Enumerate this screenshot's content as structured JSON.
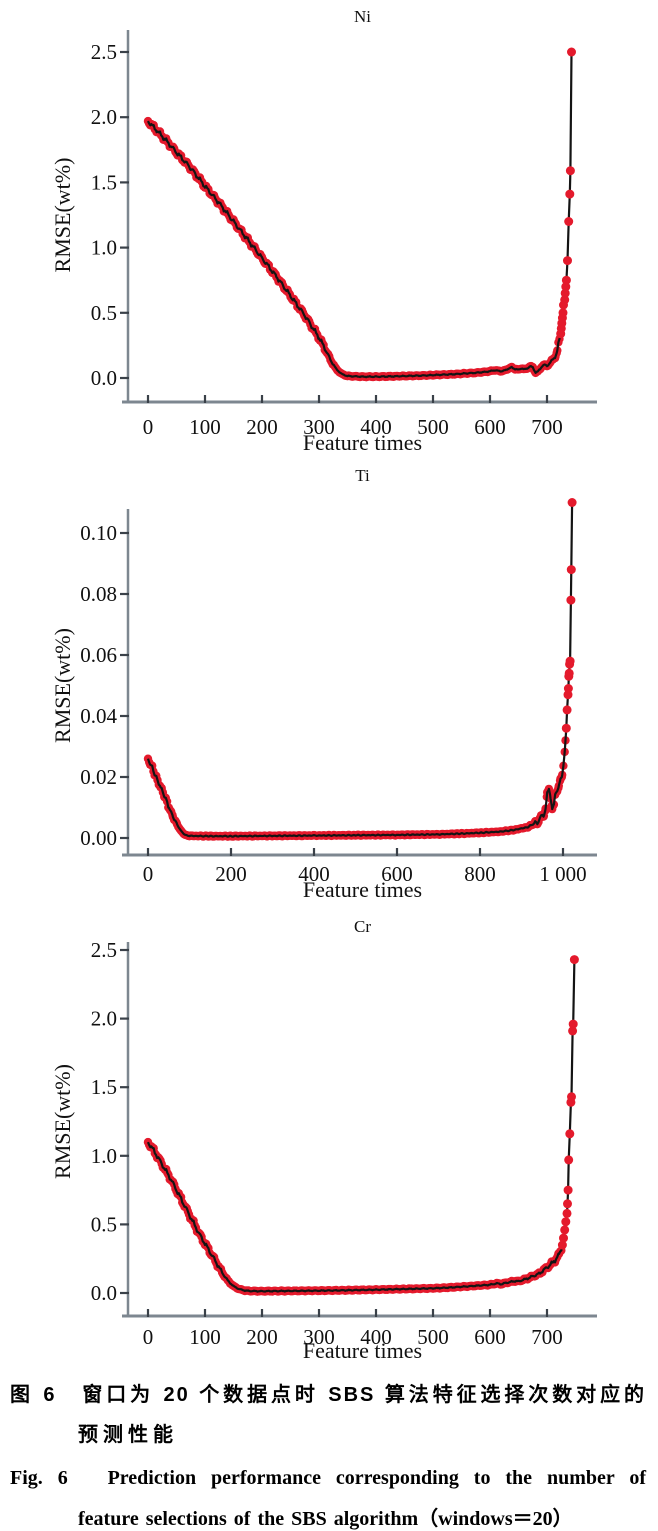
{
  "caption": {
    "zh_line1": "图 6　窗口为 20 个数据点时 SBS 算法特征选择次数对应的",
    "zh_line2": "预测性能",
    "en_line1": "Fig. 6　Prediction performance corresponding to the number of",
    "en_line2": "feature selections of the SBS algorithm（windows＝20）"
  },
  "colors": {
    "marker": "#e41a2c",
    "line": "#141414",
    "axis": "#7d8790",
    "tick": "#3a4149",
    "text": "#111111"
  },
  "chart_data": [
    {
      "type": "scatter-line",
      "title": "Ni",
      "xlabel": "Feature times",
      "ylabel": "RMSE(wt%)",
      "xlim": [
        0,
        790
      ],
      "ylim": [
        0,
        2.5
      ],
      "grid": false,
      "legend": "none",
      "xticks": {
        "values": [
          0,
          100,
          200,
          300,
          400,
          500,
          600,
          700
        ],
        "labels": [
          "0",
          "100",
          "200",
          "300",
          "400",
          "500",
          "600",
          "700"
        ]
      },
      "yticks": {
        "values": [
          0,
          0.5,
          1.0,
          1.5,
          2.0,
          2.5
        ],
        "labels": [
          "0.0",
          "0.5",
          "1.0",
          "1.5",
          "2.0",
          "2.5"
        ]
      },
      "curve": [
        [
          0,
          1.97
        ],
        [
          15,
          1.9
        ],
        [
          30,
          1.83
        ],
        [
          50,
          1.73
        ],
        [
          75,
          1.61
        ],
        [
          100,
          1.47
        ],
        [
          125,
          1.34
        ],
        [
          150,
          1.2
        ],
        [
          175,
          1.06
        ],
        [
          200,
          0.92
        ],
        [
          225,
          0.78
        ],
        [
          250,
          0.63
        ],
        [
          275,
          0.48
        ],
        [
          300,
          0.31
        ],
        [
          310,
          0.23
        ],
        [
          320,
          0.14
        ],
        [
          330,
          0.07
        ],
        [
          340,
          0.03
        ],
        [
          350,
          0.015
        ],
        [
          375,
          0.01
        ],
        [
          400,
          0.01
        ],
        [
          425,
          0.012
        ],
        [
          450,
          0.015
        ],
        [
          475,
          0.018
        ],
        [
          500,
          0.022
        ],
        [
          520,
          0.026
        ],
        [
          540,
          0.03
        ],
        [
          560,
          0.036
        ],
        [
          575,
          0.04
        ],
        [
          590,
          0.046
        ],
        [
          600,
          0.052
        ],
        [
          608,
          0.06
        ],
        [
          614,
          0.055
        ],
        [
          620,
          0.052
        ],
        [
          626,
          0.058
        ],
        [
          632,
          0.072
        ],
        [
          638,
          0.08
        ],
        [
          644,
          0.07
        ],
        [
          650,
          0.062
        ],
        [
          655,
          0.076
        ],
        [
          660,
          0.066
        ],
        [
          665,
          0.072
        ],
        [
          670,
          0.09
        ],
        [
          675,
          0.08
        ],
        [
          680,
          0.042
        ],
        [
          684,
          0.05
        ],
        [
          688,
          0.07
        ],
        [
          692,
          0.095
        ],
        [
          696,
          0.1
        ],
        [
          700,
          0.092
        ],
        [
          704,
          0.112
        ],
        [
          708,
          0.13
        ],
        [
          712,
          0.15
        ],
        [
          715,
          0.17
        ],
        [
          718,
          0.21
        ],
        [
          720,
          0.26
        ],
        [
          722,
          0.3
        ]
      ],
      "spike": [
        [
          724,
          0.34
        ],
        [
          725,
          0.38
        ],
        [
          726,
          0.42
        ],
        [
          727,
          0.46
        ],
        [
          728,
          0.5
        ],
        [
          729,
          0.56
        ],
        [
          731,
          0.6
        ],
        [
          732,
          0.65
        ],
        [
          733,
          0.7
        ],
        [
          734,
          0.75
        ],
        [
          736,
          0.9
        ],
        [
          738,
          1.2
        ],
        [
          740,
          1.41
        ],
        [
          741,
          1.59
        ],
        [
          743,
          2.5
        ]
      ]
    },
    {
      "type": "scatter-line",
      "title": "Ti",
      "xlabel": "Feature times",
      "ylabel": "RMSE(wt%)",
      "xlim": [
        0,
        1075
      ],
      "ylim": [
        0,
        0.11
      ],
      "grid": false,
      "legend": "none",
      "xticks": {
        "values": [
          0,
          200,
          400,
          600,
          800,
          1000
        ],
        "labels": [
          "0",
          "200",
          "400",
          "600",
          "800",
          "1 000"
        ]
      },
      "yticks": {
        "values": [
          0,
          0.02,
          0.04,
          0.06,
          0.08,
          0.1
        ],
        "labels": [
          "0.00",
          "0.02",
          "0.04",
          "0.06",
          "0.08",
          "0.10"
        ]
      },
      "curve": [
        [
          0,
          0.026
        ],
        [
          5,
          0.0245
        ],
        [
          10,
          0.023
        ],
        [
          20,
          0.02
        ],
        [
          30,
          0.0168
        ],
        [
          40,
          0.0135
        ],
        [
          50,
          0.0103
        ],
        [
          60,
          0.0072
        ],
        [
          70,
          0.0044
        ],
        [
          80,
          0.0022
        ],
        [
          90,
          0.001
        ],
        [
          100,
          0.0007
        ],
        [
          150,
          0.0006
        ],
        [
          200,
          0.0006
        ],
        [
          300,
          0.0007
        ],
        [
          400,
          0.0008
        ],
        [
          500,
          0.0009
        ],
        [
          600,
          0.001
        ],
        [
          700,
          0.0012
        ],
        [
          750,
          0.0014
        ],
        [
          800,
          0.0017
        ],
        [
          850,
          0.0021
        ],
        [
          880,
          0.0026
        ],
        [
          900,
          0.0031
        ],
        [
          915,
          0.0036
        ],
        [
          925,
          0.0042
        ],
        [
          933,
          0.0052
        ],
        [
          938,
          0.0048
        ],
        [
          944,
          0.0062
        ],
        [
          950,
          0.0078
        ],
        [
          954,
          0.0072
        ],
        [
          958,
          0.009
        ],
        [
          962,
          0.0152
        ],
        [
          966,
          0.016
        ],
        [
          970,
          0.0125
        ],
        [
          974,
          0.01
        ],
        [
          978,
          0.0112
        ],
        [
          982,
          0.0144
        ],
        [
          986,
          0.016
        ],
        [
          990,
          0.0172
        ],
        [
          994,
          0.019
        ],
        [
          998,
          0.021
        ],
        [
          1001,
          0.024
        ],
        [
          1004,
          0.028
        ],
        [
          1006,
          0.032
        ]
      ],
      "spike": [
        [
          1008,
          0.036
        ],
        [
          1010,
          0.042
        ],
        [
          1012,
          0.047
        ],
        [
          1013,
          0.049
        ],
        [
          1014,
          0.053
        ],
        [
          1015,
          0.054
        ],
        [
          1016,
          0.057
        ],
        [
          1017,
          0.058
        ],
        [
          1019,
          0.078
        ],
        [
          1020,
          0.088
        ],
        [
          1022,
          0.11
        ]
      ]
    },
    {
      "type": "scatter-line",
      "title": "Cr",
      "xlabel": "Feature times",
      "ylabel": "RMSE(wt%)",
      "xlim": [
        0,
        790
      ],
      "ylim": [
        0,
        2.5
      ],
      "grid": false,
      "legend": "none",
      "xticks": {
        "values": [
          0,
          100,
          200,
          300,
          400,
          500,
          600,
          700
        ],
        "labels": [
          "0",
          "100",
          "200",
          "300",
          "400",
          "500",
          "600",
          "700"
        ]
      },
      "yticks": {
        "values": [
          0,
          0.5,
          1.0,
          1.5,
          2.0,
          2.5
        ],
        "labels": [
          "0.0",
          "0.5",
          "1.0",
          "1.5",
          "2.0",
          "2.5"
        ]
      },
      "curve": [
        [
          0,
          1.1
        ],
        [
          10,
          1.04
        ],
        [
          20,
          0.97
        ],
        [
          30,
          0.9
        ],
        [
          40,
          0.83
        ],
        [
          50,
          0.75
        ],
        [
          60,
          0.67
        ],
        [
          70,
          0.59
        ],
        [
          80,
          0.51
        ],
        [
          90,
          0.43
        ],
        [
          100,
          0.36
        ],
        [
          110,
          0.29
        ],
        [
          120,
          0.22
        ],
        [
          130,
          0.15
        ],
        [
          140,
          0.09
        ],
        [
          150,
          0.05
        ],
        [
          160,
          0.028
        ],
        [
          170,
          0.018
        ],
        [
          180,
          0.014
        ],
        [
          200,
          0.013
        ],
        [
          250,
          0.015
        ],
        [
          300,
          0.017
        ],
        [
          350,
          0.02
        ],
        [
          400,
          0.024
        ],
        [
          450,
          0.029
        ],
        [
          500,
          0.034
        ],
        [
          520,
          0.038
        ],
        [
          540,
          0.043
        ],
        [
          560,
          0.048
        ],
        [
          580,
          0.054
        ],
        [
          600,
          0.06
        ],
        [
          612,
          0.07
        ],
        [
          620,
          0.064
        ],
        [
          628,
          0.074
        ],
        [
          636,
          0.08
        ],
        [
          644,
          0.088
        ],
        [
          650,
          0.084
        ],
        [
          656,
          0.094
        ],
        [
          662,
          0.1
        ],
        [
          668,
          0.11
        ],
        [
          674,
          0.12
        ],
        [
          680,
          0.13
        ],
        [
          686,
          0.14
        ],
        [
          692,
          0.16
        ],
        [
          698,
          0.18
        ],
        [
          704,
          0.2
        ],
        [
          710,
          0.22
        ],
        [
          716,
          0.25
        ],
        [
          721,
          0.28
        ],
        [
          725,
          0.31
        ]
      ],
      "spike": [
        [
          727,
          0.35
        ],
        [
          729,
          0.4
        ],
        [
          731,
          0.46
        ],
        [
          733,
          0.52
        ],
        [
          735,
          0.58
        ],
        [
          736,
          0.65
        ],
        [
          737,
          0.75
        ],
        [
          738,
          0.97
        ],
        [
          740,
          1.16
        ],
        [
          742,
          1.39
        ],
        [
          743,
          1.43
        ],
        [
          745,
          1.91
        ],
        [
          746,
          1.96
        ],
        [
          748,
          2.43
        ]
      ]
    }
  ]
}
